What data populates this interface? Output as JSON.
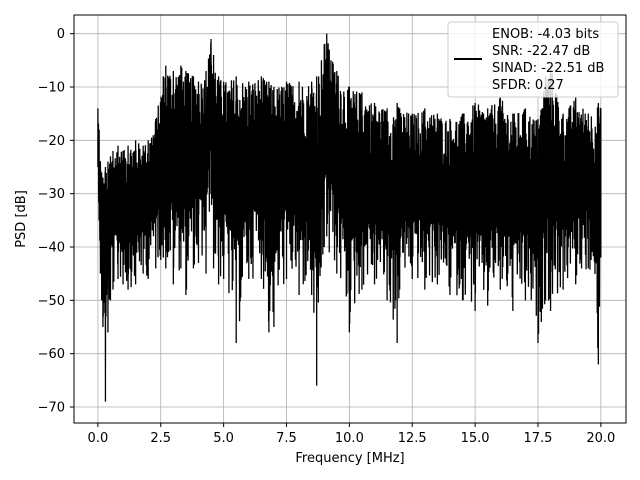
{
  "chart_data": {
    "type": "line",
    "xlabel": "Frequency [MHz]",
    "ylabel": "PSD [dB]",
    "xlim": [
      -0.95,
      21.0
    ],
    "ylim": [
      -73,
      3.5
    ],
    "xticks": [
      0.0,
      2.5,
      5.0,
      7.5,
      10.0,
      12.5,
      15.0,
      17.5,
      20.0
    ],
    "xtick_labels": [
      "0.0",
      "2.5",
      "5.0",
      "7.5",
      "10.0",
      "12.5",
      "15.0",
      "17.5",
      "20.0"
    ],
    "yticks": [
      0,
      -10,
      -20,
      -30,
      -40,
      -50,
      -60,
      -70
    ],
    "ytick_labels": [
      "0",
      "−10",
      "−20",
      "−30",
      "−40",
      "−50",
      "−60",
      "−70"
    ],
    "grid": true,
    "legend_position": "top-right",
    "legend_lines": [
      "ENOB: -4.03 bits",
      "SNR: -22.47 dB",
      "SINAD: -22.51 dB",
      "SFDR: 0.27"
    ],
    "line_color": "#000000",
    "series": [
      {
        "x": [
          0.0,
          0.05,
          0.1,
          0.15,
          0.2,
          0.3,
          0.4,
          0.5,
          0.6,
          0.8,
          1.0,
          1.2,
          1.5,
          1.8,
          2.0,
          2.3,
          2.6,
          2.7,
          3.0,
          3.3,
          3.5,
          3.8,
          4.0,
          4.3,
          4.5,
          4.6,
          4.8,
          5.0,
          5.5,
          6.0,
          6.5,
          6.8,
          7.0,
          7.5,
          8.0,
          8.5,
          8.7,
          9.0,
          9.1,
          9.2,
          9.5,
          10.0,
          10.5,
          11.0,
          11.5,
          11.9,
          12.0,
          12.5,
          13.0,
          13.5,
          14.0,
          14.5,
          15.0,
          15.5,
          16.0,
          16.5,
          17.0,
          17.5,
          17.8,
          18.0,
          18.5,
          19.0,
          19.5,
          19.9,
          20.0
        ],
        "y_high": [
          -14,
          -18,
          -24,
          -26,
          -27,
          -25,
          -24,
          -23,
          -22,
          -21,
          -22,
          -21,
          -20,
          -21,
          -20,
          -16,
          -8,
          -6,
          -7,
          -6,
          -7,
          -8,
          -9,
          -7,
          -1,
          -4,
          -8,
          -9,
          -8,
          -9,
          -8,
          -9,
          -10,
          -9,
          -9,
          -9,
          -8,
          -2,
          0,
          -3,
          -7,
          -10,
          -11,
          -13,
          -14,
          -13,
          -14,
          -15,
          -14,
          -15,
          -16,
          -15,
          -13,
          -14,
          -12,
          -15,
          -14,
          -16,
          -8,
          -6,
          -15,
          -12,
          -15,
          -13,
          -14
        ],
        "y_low": [
          -25,
          -35,
          -45,
          -50,
          -55,
          -69,
          -56,
          -50,
          -48,
          -46,
          -47,
          -48,
          -47,
          -45,
          -46,
          -44,
          -42,
          -44,
          -47,
          -44,
          -49,
          -44,
          -43,
          -45,
          -30,
          -44,
          -47,
          -46,
          -58,
          -46,
          -46,
          -56,
          -55,
          -46,
          -49,
          -49,
          -66,
          -40,
          -38,
          -41,
          -45,
          -56,
          -48,
          -47,
          -50,
          -58,
          -48,
          -46,
          -48,
          -47,
          -49,
          -50,
          -52,
          -51,
          -48,
          -52,
          -50,
          -58,
          -50,
          -52,
          -48,
          -47,
          -44,
          -62,
          -42
        ]
      }
    ]
  }
}
